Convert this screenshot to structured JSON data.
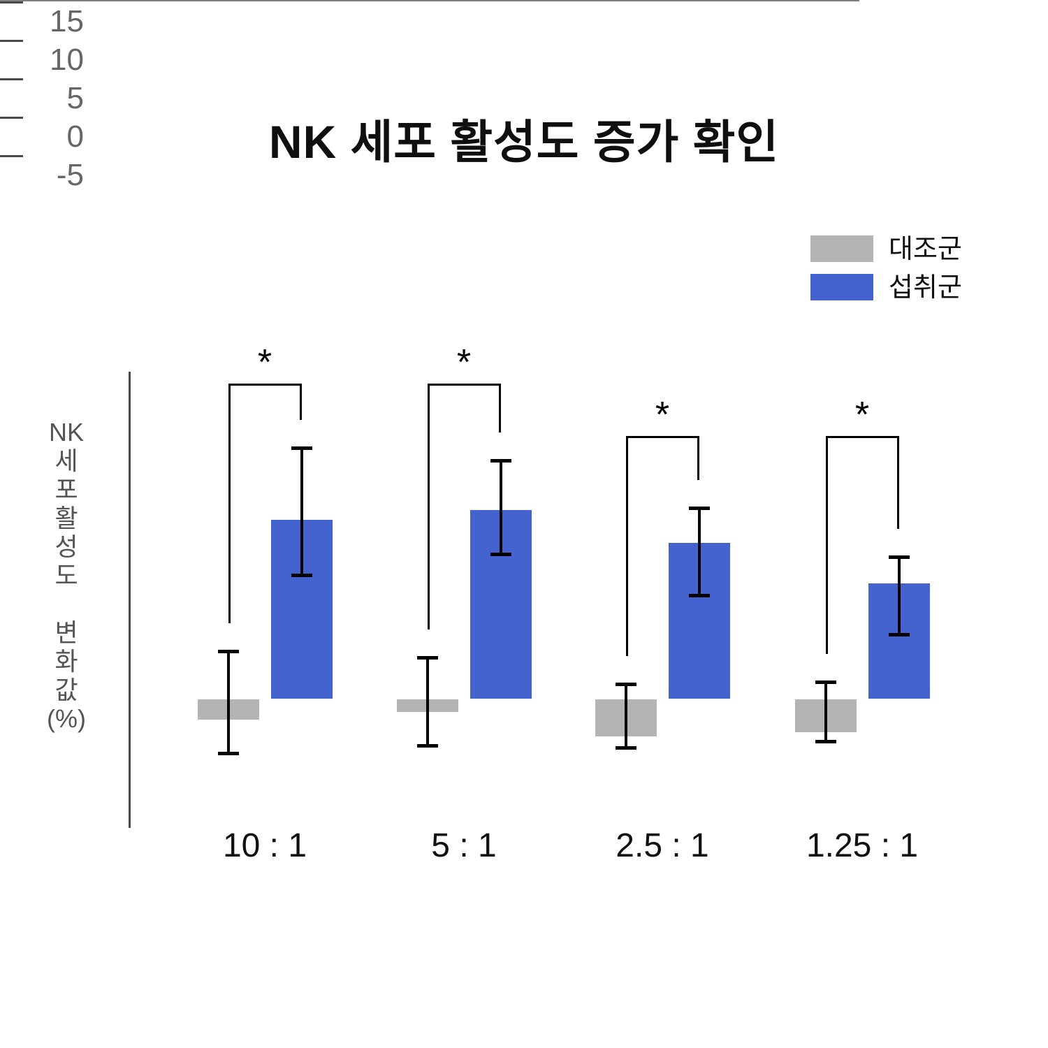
{
  "title": "NK 세포 활성도 증가 확인",
  "legend": {
    "control_label": "대조군",
    "intake_label": "섭취군"
  },
  "significance_marker": "*",
  "colors": {
    "control": "#b4b4b4",
    "intake": "#4463cf",
    "axis": "#4a4a4a",
    "zero_line": "#7e7e7e",
    "tick_label": "#666666",
    "annotation": "#000000",
    "title": "#0f0f0f"
  },
  "y_axis": {
    "label": "NK 세포 활성도 변화값 (%)",
    "label_lines": [
      "NK",
      "세",
      "포",
      "활",
      "성",
      "도",
      "",
      "변",
      "화",
      "값",
      "(%)"
    ],
    "tick_labels": [
      "15",
      "10",
      "5",
      "0",
      "-5"
    ]
  },
  "chart_data": {
    "type": "bar",
    "title": "NK 세포 활성도 증가 확인",
    "categories": [
      "10 : 1",
      "5 : 1",
      "2.5 : 1",
      "1.25 : 1"
    ],
    "series": [
      {
        "name": "대조군",
        "color": "#b4b4b4",
        "values": [
          -1.0,
          -0.6,
          -1.8,
          -1.6
        ],
        "error_high": [
          2.3,
          2.0,
          0.7,
          0.8
        ],
        "error_low": [
          -2.7,
          -2.3,
          -2.4,
          -2.1
        ]
      },
      {
        "name": "섭취군",
        "color": "#4463cf",
        "values": [
          8.7,
          9.2,
          7.6,
          5.6
        ],
        "error_high": [
          12.2,
          11.6,
          9.3,
          6.9
        ],
        "error_low": [
          6.0,
          7.0,
          5.0,
          3.1
        ]
      }
    ],
    "significance": [
      "*",
      "*",
      "*",
      "*"
    ],
    "xlabel": "",
    "ylabel": "NK 세포 활성도 변화값 (%)",
    "yticks": [
      15,
      10,
      5,
      0,
      -5
    ],
    "ylim": [
      -6.4,
      15.9
    ],
    "grid": false,
    "legend_position": "top-right"
  }
}
